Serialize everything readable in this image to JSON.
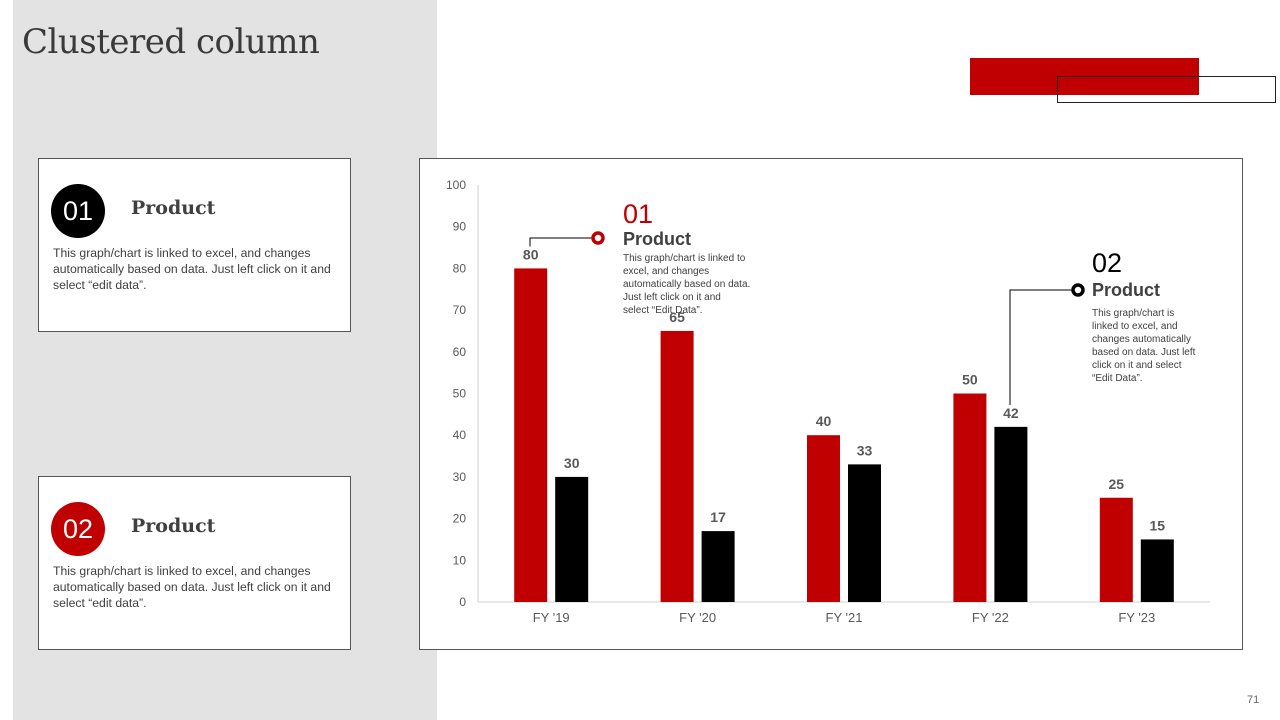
{
  "title": "Clustered column",
  "colors": {
    "series1": "#c00000",
    "series2": "#000000",
    "panel": "#e3e3e3"
  },
  "cards": [
    {
      "number": "01",
      "heading": "Product",
      "text": "This graph/chart is linked to excel, and changes automatically based on data. Just left click on it and select “edit data”.",
      "badge_color": "#000000"
    },
    {
      "number": "02",
      "heading": "Product",
      "text": "This graph/chart is linked to excel, and changes automatically based on data. Just left click on it and select “edit data”.",
      "badge_color": "#c00000"
    }
  ],
  "chart_data": {
    "type": "bar",
    "categories": [
      "FY '19",
      "FY '20",
      "FY '21",
      "FY '22",
      "FY '23"
    ],
    "series": [
      {
        "values": [
          80,
          65,
          40,
          50,
          25
        ],
        "color": "#c00000"
      },
      {
        "values": [
          30,
          17,
          33,
          42,
          15
        ],
        "color": "#000000"
      }
    ],
    "ylim": [
      0,
      100
    ],
    "yticks": [
      0,
      10,
      20,
      30,
      40,
      50,
      60,
      70,
      80,
      90,
      100
    ],
    "grid": false,
    "annotations": [
      {
        "number": "01",
        "heading": "Product",
        "text": "This graph/chart is linked to excel, and changes automatically based on data. Just left click on it and select “Edit Data”.",
        "color": "#c00000",
        "series": 0,
        "category": 0
      },
      {
        "number": "02",
        "heading": "Product",
        "text": "This graph/chart is linked to excel, and changes automatically based on data. Just left click on it and select “Edit Data”.",
        "color": "#000000",
        "series": 1,
        "category": 3
      }
    ]
  },
  "page_number": "71"
}
